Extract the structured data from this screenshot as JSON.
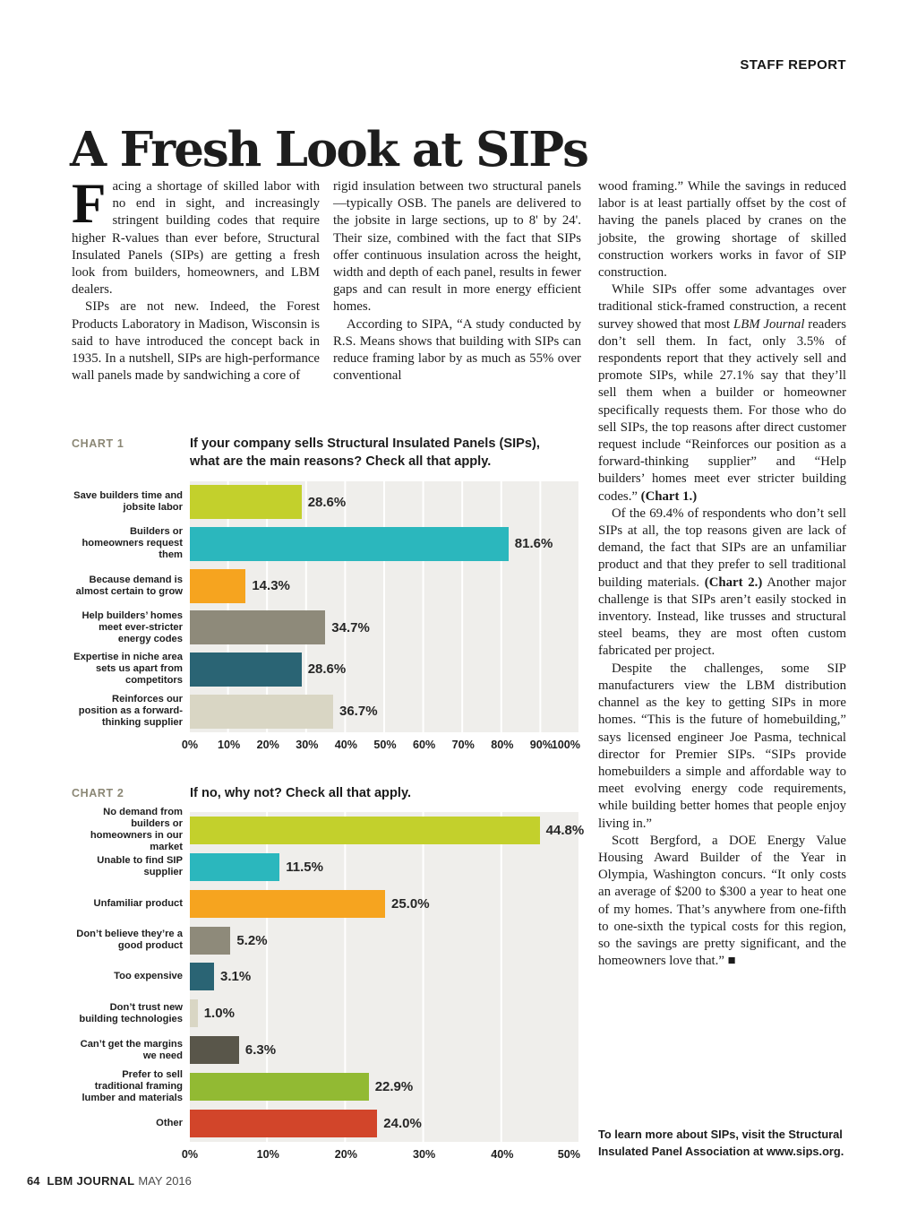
{
  "page": {
    "kicker": "STAFF REPORT",
    "title": "A Fresh Look at SIPs",
    "footer": {
      "page_number": "64",
      "magazine": "LBM JOURNAL",
      "issue": "MAY 2016"
    }
  },
  "article": {
    "note": "To learn more about SIPs, visit the Structural Insulated Panel Association at www.sips.org.",
    "columns": [
      {
        "paragraphs": [
          {
            "dropcap": "F",
            "segments": [
              {
                "text": "acing a shortage of skilled labor with no end in sight, and increasingly stringent building codes that require higher R-values than ever before, Structural Insulated Panels (SIPs) are getting a fresh look from builders, homeowners, and LBM dealers."
              }
            ]
          },
          {
            "indent": true,
            "segments": [
              {
                "text": "SIPs are not new. Indeed, the Forest Products Laboratory in Madison, Wisconsin is said to have introduced the concept back in 1935. In a nutshell, SIPs are high-performance wall panels made by sandwiching a core of"
              }
            ]
          }
        ]
      },
      {
        "paragraphs": [
          {
            "segments": [
              {
                "text": "rigid insulation between two structural panels—typically OSB. The panels are delivered to the jobsite in large sections, up to 8' by 24'. Their size, combined with the fact that SIPs offer continuous insulation across the height, width and depth of each panel, results in fewer gaps and can result in more energy efficient homes."
              }
            ]
          },
          {
            "indent": true,
            "segments": [
              {
                "text": "According to SIPA, “A study conducted by R.S. Means shows that building with SIPs can reduce framing labor by as much as 55% over conventional"
              }
            ]
          }
        ]
      },
      {
        "paragraphs": [
          {
            "segments": [
              {
                "text": "wood framing.” While the savings in reduced labor is at least partially offset by the cost of having the panels placed by cranes on the jobsite, the growing shortage of skilled construction workers works in favor of SIP construction."
              }
            ]
          },
          {
            "indent": true,
            "segments": [
              {
                "text": "While SIPs offer some advantages over traditional stick-framed construction, a recent survey showed that most "
              },
              {
                "text": "LBM Journal",
                "italic": true
              },
              {
                "text": " readers don’t sell them. In fact, only 3.5% of respondents report that they actively sell and promote SIPs, while 27.1% say that they’ll sell them when a builder or homeowner specifically requests them. For those who do sell SIPs, the top reasons after direct customer request include “Reinforces our position as a forward-thinking supplier” and “Help builders’ homes meet ever stricter building codes.” "
              },
              {
                "text": "(Chart 1.)",
                "bold": true
              }
            ]
          },
          {
            "indent": true,
            "segments": [
              {
                "text": "Of the 69.4% of respondents who don’t sell SIPs at all, the top reasons given are lack of demand, the fact that SIPs are an unfamiliar product and that they prefer to sell traditional building materials. "
              },
              {
                "text": "(Chart 2.)",
                "bold": true
              },
              {
                "text": " Another major challenge is that SIPs aren’t easily stocked in inventory. Instead, like trusses and structural steel beams, they are most often custom fabricated per project."
              }
            ]
          },
          {
            "indent": true,
            "segments": [
              {
                "text": "Despite the challenges, some SIP manufacturers view the LBM distribution channel as the key to getting SIPs in more homes. “This is the future of homebuilding,” says licensed engineer Joe Pasma, technical director for Premier SIPs. “SIPs provide homebuilders a simple and affordable way to meet evolving energy code requirements, while building better homes that people enjoy living in.”"
              }
            ]
          },
          {
            "indent": true,
            "segments": [
              {
                "text": "Scott Bergford, a DOE Energy Value Housing Award Builder of the Year in Olympia, Washington concurs. “It only costs an average of $200 to $300 a year to heat one of my homes. That’s anywhere from one-fifth to one-sixth the typical costs for this region, so the savings are pretty significant, and the homeowners love that.” ■"
              }
            ]
          }
        ]
      }
    ]
  },
  "chart_data": [
    {
      "type": "bar",
      "orientation": "horizontal",
      "kicker": "CHART 1",
      "title_lines": [
        "If your company sells Structural Insulated Panels (SIPs),",
        "what are the main reasons? Check all that apply."
      ],
      "categories": [
        "Save builders time and jobsite labor",
        "Builders or homeowners request them",
        "Because demand is almost certain to grow",
        "Help builders’ homes meet ever-stricter energy codes",
        "Expertise in niche area sets us apart from competitors",
        "Reinforces our position as a forward-thinking supplier"
      ],
      "values": [
        28.6,
        81.6,
        14.3,
        34.7,
        28.6,
        36.7
      ],
      "value_labels": [
        "28.6%",
        "81.6%",
        "14.3%",
        "34.7%",
        "28.6%",
        "36.7%"
      ],
      "bar_colors": [
        "#c3d02c",
        "#2bb7bd",
        "#f6a41f",
        "#8e8a7a",
        "#2a6474",
        "#d9d6c4"
      ],
      "xlim": [
        0,
        100
      ],
      "tick_labels": [
        "0%",
        "10%",
        "20%",
        "30%",
        "40%",
        "50%",
        "60%",
        "70%",
        "80%",
        "90%",
        "100%"
      ],
      "panel_color": "#efeeeb",
      "grid": "vertical-white-lines"
    },
    {
      "type": "bar",
      "orientation": "horizontal",
      "kicker": "CHART 2",
      "title_lines": [
        "If no, why not? Check all that apply."
      ],
      "categories": [
        "No demand from builders or homeowners in our market",
        "Unable to find SIP supplier",
        "Unfamiliar product",
        "Don’t believe they’re a good product",
        "Too expensive",
        "Don’t trust new building technologies",
        "Can’t get the margins we need",
        "Prefer to sell traditional framing lumber and materials",
        "Other"
      ],
      "values": [
        44.8,
        11.5,
        25.0,
        5.2,
        3.1,
        1.0,
        6.3,
        22.9,
        24.0
      ],
      "value_labels": [
        "44.8%",
        "11.5%",
        "25.0%",
        "5.2%",
        "3.1%",
        "1.0%",
        "6.3%",
        "22.9%",
        "24.0%"
      ],
      "bar_colors": [
        "#c3d02c",
        "#2bb7bd",
        "#f6a41f",
        "#8e8a7a",
        "#2a6474",
        "#d9d6c4",
        "#59564a",
        "#92ba33",
        "#d2452a"
      ],
      "xlim": [
        0,
        50
      ],
      "tick_labels": [
        "0%",
        "10%",
        "20%",
        "30%",
        "40%",
        "50%"
      ],
      "panel_color": "#efeeeb",
      "grid": "vertical-white-lines"
    }
  ]
}
